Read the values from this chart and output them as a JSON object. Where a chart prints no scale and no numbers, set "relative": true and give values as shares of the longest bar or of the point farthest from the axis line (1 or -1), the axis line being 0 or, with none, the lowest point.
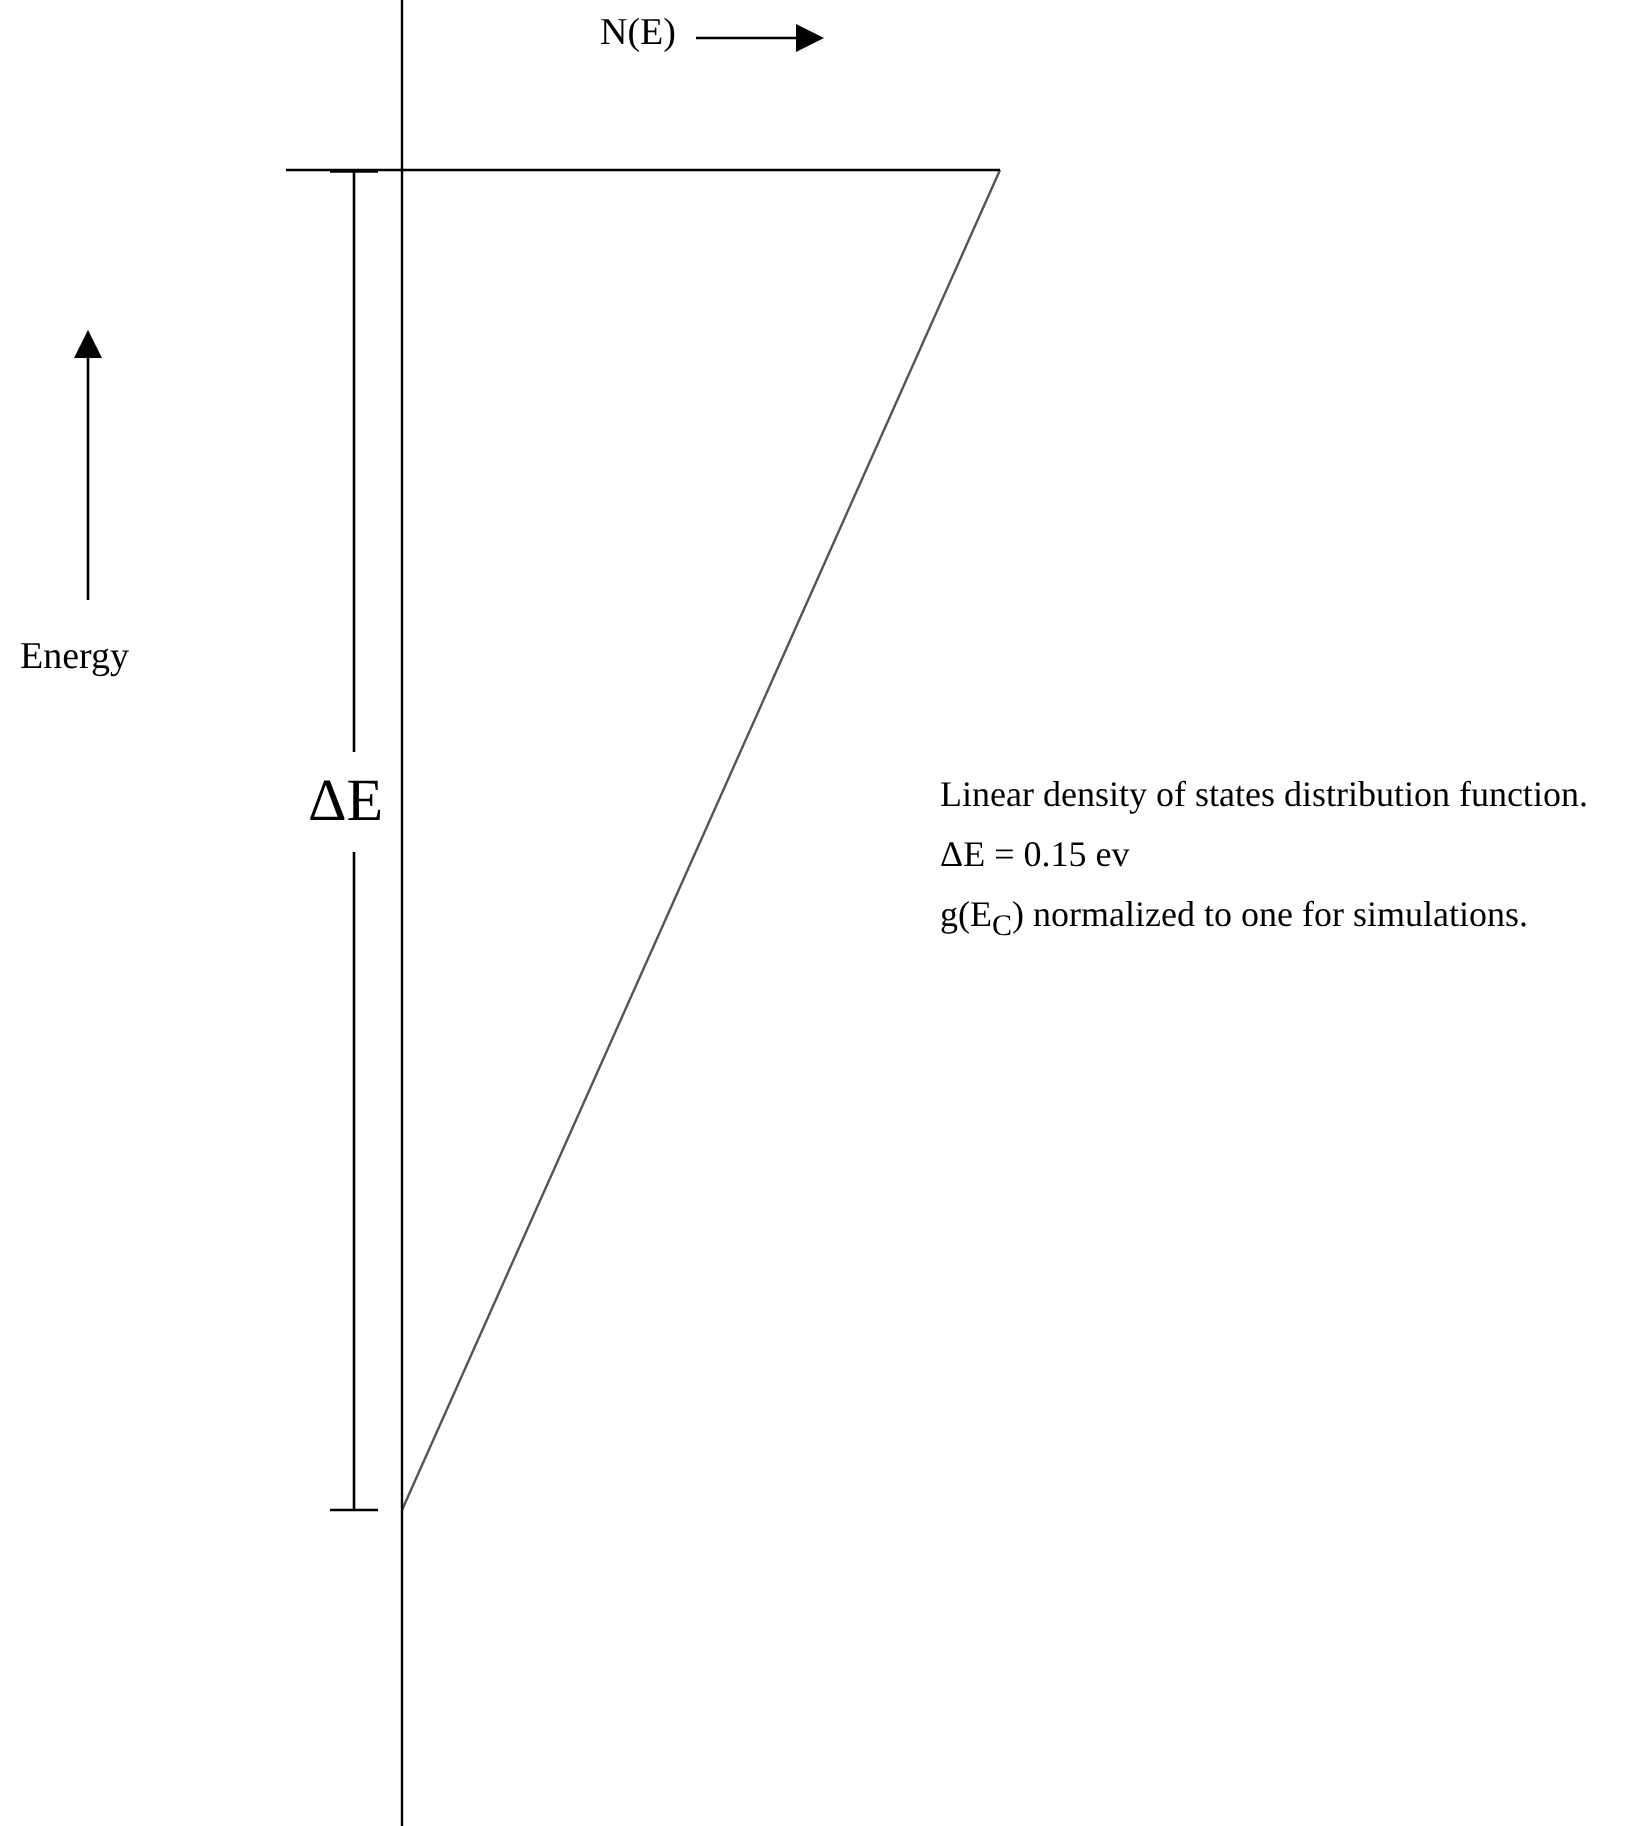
{
  "chart_data": {
    "type": "line",
    "relative": true,
    "xlabel": "N(E)",
    "ylabel": "Energy",
    "categories": [
      null,
      null
    ],
    "series": [
      {
        "color": "#555555",
        "values": [
          0,
          1
        ]
      }
    ],
    "ref_lines": [
      {
        "axis": "y",
        "value": 1,
        "color": "#000000"
      }
    ],
    "annotations": [
      "ΔE",
      "Linear density of states distribution function.",
      "ΔE = 0.15 ev",
      "g(E$_{C}$) normalized to one for simulations."
    ],
    "legend": false,
    "marker": "none",
    "line_style": "solid"
  }
}
